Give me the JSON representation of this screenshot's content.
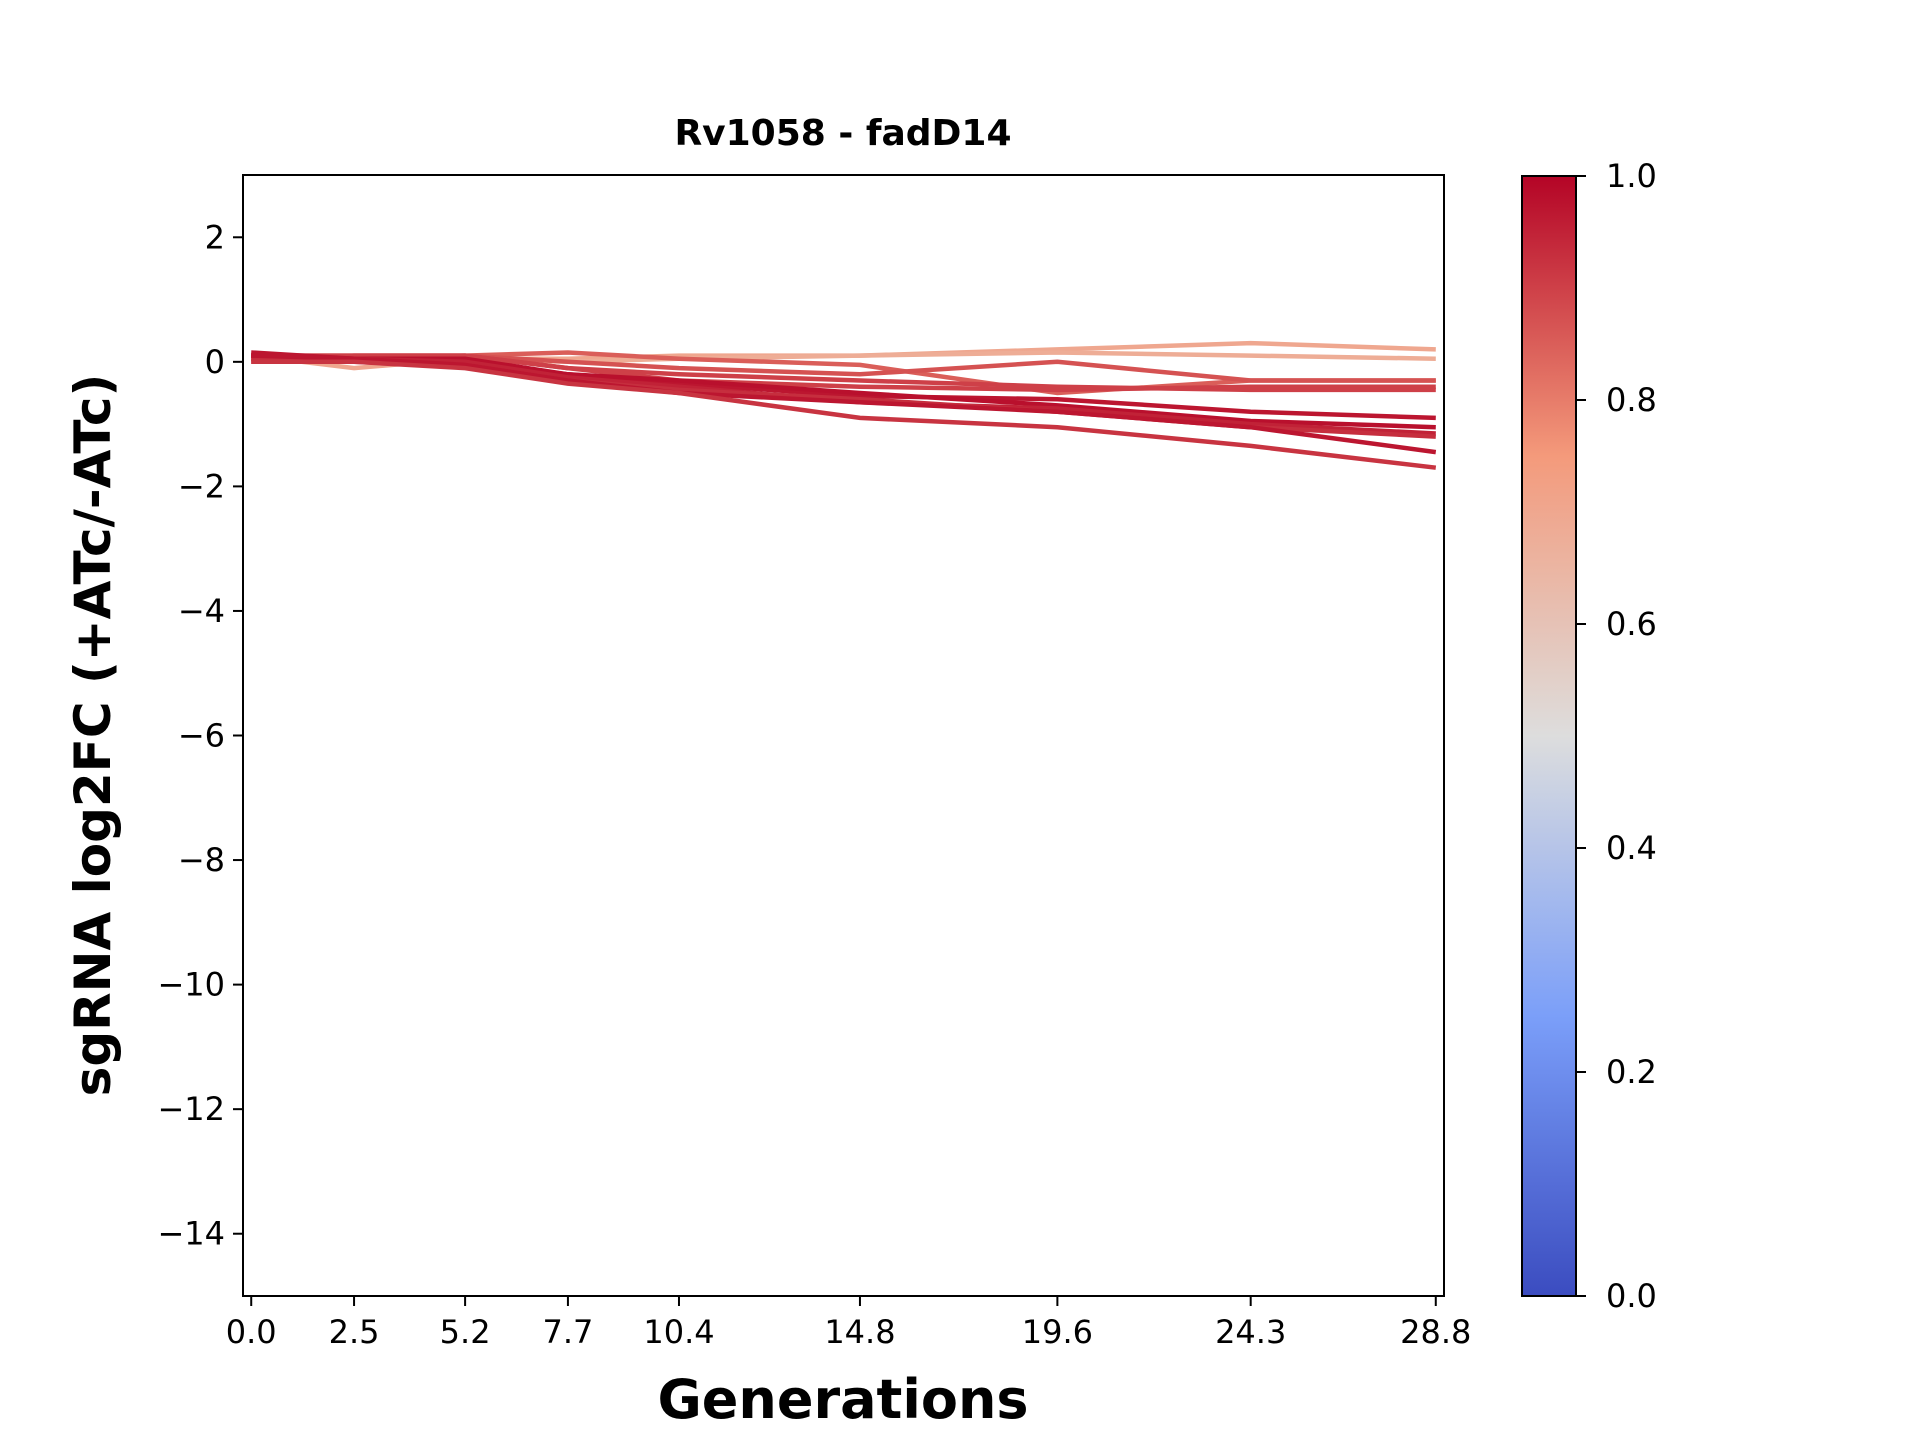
{
  "chart_data": {
    "type": "line",
    "title": "Rv1058 - fadD14",
    "xlabel": "Generations",
    "ylabel": "sgRNA log2FC (+ATc/-ATc)",
    "x": [
      0.0,
      2.5,
      5.2,
      7.7,
      10.4,
      14.8,
      19.6,
      24.3,
      28.8
    ],
    "x_tick_labels": [
      "0.0",
      "2.5",
      "5.2",
      "7.7",
      "10.4",
      "14.8",
      "19.6",
      "24.3",
      "28.8"
    ],
    "xlim": [
      -0.2,
      29.0
    ],
    "ylim": [
      -15,
      3
    ],
    "y_ticks": [
      2,
      0,
      -2,
      -4,
      -6,
      -8,
      -10,
      -12,
      -14
    ],
    "y_tick_labels": [
      "2",
      "0",
      "−2",
      "−4",
      "−6",
      "−8",
      "−10",
      "−12",
      "−14"
    ],
    "grid": false,
    "colormap": "coolwarm",
    "colorbar": {
      "range": [
        0.0,
        1.0
      ],
      "tick_values": [
        0.0,
        0.2,
        0.4,
        0.6,
        0.8,
        1.0
      ],
      "tick_labels": [
        "0.0",
        "0.2",
        "0.4",
        "0.6",
        "0.8",
        "1.0"
      ],
      "stops": [
        "#3b4cc0",
        "#7b9ff9",
        "#dddddd",
        "#f49a7b",
        "#b40426"
      ]
    },
    "series": [
      {
        "color_value": 0.7,
        "values": [
          0.1,
          -0.1,
          0.05,
          0.05,
          0.1,
          0.1,
          0.2,
          0.3,
          0.2
        ]
      },
      {
        "color_value": 0.68,
        "values": [
          0.05,
          0.05,
          0.05,
          0.0,
          0.05,
          0.1,
          0.15,
          0.1,
          0.05
        ]
      },
      {
        "color_value": 0.85,
        "values": [
          0.1,
          0.1,
          0.1,
          0.15,
          0.05,
          -0.05,
          -0.5,
          -0.3,
          -0.3
        ]
      },
      {
        "color_value": 0.87,
        "values": [
          0.05,
          0.05,
          0.1,
          0.0,
          -0.1,
          -0.2,
          0.0,
          -0.3,
          -0.3
        ]
      },
      {
        "color_value": 0.9,
        "values": [
          0.1,
          0.1,
          0.1,
          -0.1,
          -0.2,
          -0.3,
          -0.4,
          -0.45,
          -0.45
        ]
      },
      {
        "color_value": 0.9,
        "values": [
          0.0,
          0.1,
          0.1,
          -0.1,
          -0.3,
          -0.4,
          -0.45,
          -0.4,
          -0.4
        ]
      },
      {
        "color_value": 0.97,
        "values": [
          0.15,
          0.05,
          0.0,
          -0.2,
          -0.35,
          -0.55,
          -0.6,
          -0.8,
          -0.9
        ]
      },
      {
        "color_value": 0.98,
        "values": [
          0.1,
          0.05,
          0.05,
          -0.2,
          -0.3,
          -0.5,
          -0.7,
          -0.95,
          -1.05
        ]
      },
      {
        "color_value": 0.95,
        "values": [
          0.1,
          0.05,
          0.0,
          -0.25,
          -0.4,
          -0.65,
          -0.75,
          -1.0,
          -1.15
        ]
      },
      {
        "color_value": 0.93,
        "values": [
          0.05,
          0.0,
          -0.05,
          -0.3,
          -0.45,
          -0.6,
          -0.8,
          -1.05,
          -1.2
        ]
      },
      {
        "color_value": 0.97,
        "values": [
          0.1,
          0.05,
          -0.05,
          -0.3,
          -0.5,
          -0.65,
          -0.8,
          -1.05,
          -1.45
        ]
      },
      {
        "color_value": 0.92,
        "values": [
          0.0,
          0.0,
          -0.1,
          -0.35,
          -0.5,
          -0.9,
          -1.05,
          -1.35,
          -1.7
        ]
      }
    ]
  }
}
